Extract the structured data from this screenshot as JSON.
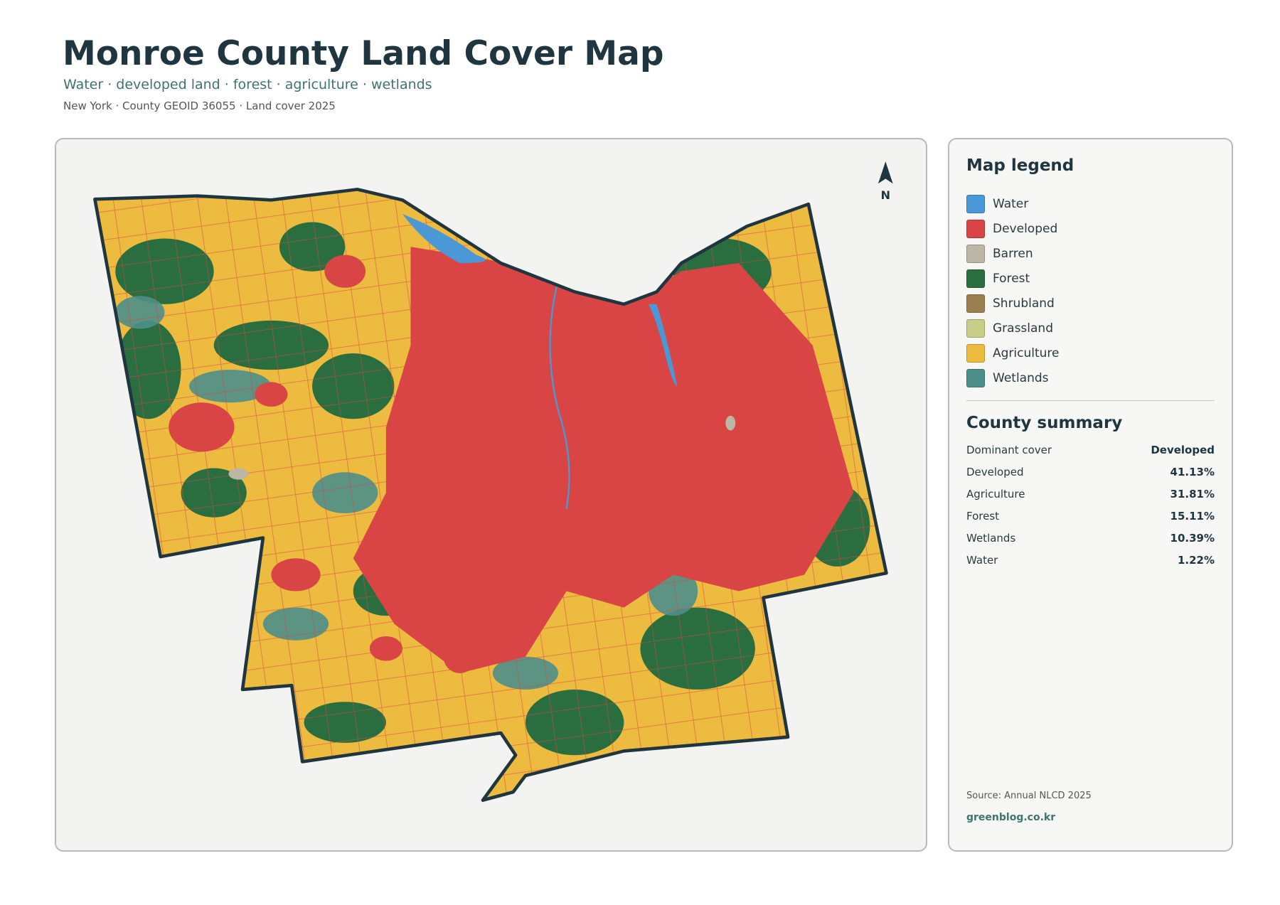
{
  "header": {
    "title": "Monroe County Land Cover Map",
    "subtitle": "Water · developed land · forest · agriculture · wetlands",
    "meta": "New York · County GEOID 36055 · Land cover 2025"
  },
  "map": {
    "north_label": "N"
  },
  "legend": {
    "title": "Map legend",
    "items": [
      {
        "label": "Water",
        "color": "#4a98d6"
      },
      {
        "label": "Developed",
        "color": "#d94545"
      },
      {
        "label": "Barren",
        "color": "#bdb5a5"
      },
      {
        "label": "Forest",
        "color": "#2a6e3f"
      },
      {
        "label": "Shrubland",
        "color": "#9c7f4f"
      },
      {
        "label": "Grassland",
        "color": "#c8cd88"
      },
      {
        "label": "Agriculture",
        "color": "#ecbb40"
      },
      {
        "label": "Wetlands",
        "color": "#4d8f8a"
      }
    ]
  },
  "summary": {
    "title": "County summary",
    "rows": [
      [
        "Dominant cover",
        "Developed"
      ],
      [
        "Developed",
        "41.13%"
      ],
      [
        "Agriculture",
        "31.81%"
      ],
      [
        "Forest",
        "15.11%"
      ],
      [
        "Wetlands",
        "10.39%"
      ],
      [
        "Water",
        "1.22%"
      ]
    ]
  },
  "footer": {
    "source": "Source: Annual NLCD 2025",
    "site": "greenblog.co.kr"
  }
}
